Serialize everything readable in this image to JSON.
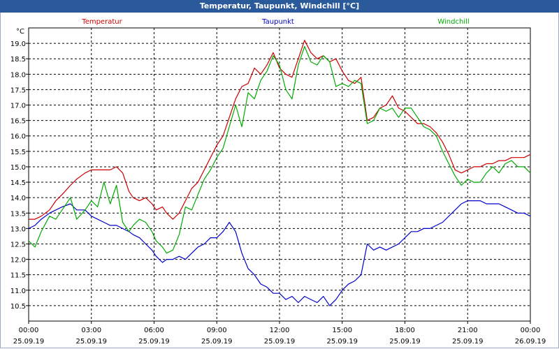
{
  "title": "Temperatur, Taupunkt, Windchill [°C]",
  "chart_data": {
    "type": "line",
    "title": "Temperatur, Taupunkt, Windchill [°C]",
    "ylabel": "°C",
    "ylim": [
      10.0,
      19.5
    ],
    "xlim": [
      0,
      24
    ],
    "grid": true,
    "y_ticks": [
      "19.0",
      "18.5",
      "18.0",
      "17.5",
      "17.0",
      "16.5",
      "16.0",
      "15.5",
      "15.0",
      "14.5",
      "14.0",
      "13.5",
      "13.0",
      "12.5",
      "12.0",
      "11.5",
      "11.0",
      "10.5"
    ],
    "x_ticks": [
      {
        "time": "00:00",
        "date": "25.09.19"
      },
      {
        "time": "03:00",
        "date": "25.09.19"
      },
      {
        "time": "06:00",
        "date": "25.09.19"
      },
      {
        "time": "09:00",
        "date": "25.09.19"
      },
      {
        "time": "12:00",
        "date": "25.09.19"
      },
      {
        "time": "15:00",
        "date": "25.09.19"
      },
      {
        "time": "18:00",
        "date": "25.09.19"
      },
      {
        "time": "21:00",
        "date": "25.09.19"
      },
      {
        "time": "00:00",
        "date": "26.09.19"
      }
    ],
    "series": [
      {
        "name": "Temperatur",
        "color": "#cc0000",
        "x": [
          0,
          0.3,
          0.6,
          1,
          1.3,
          1.6,
          2,
          2.3,
          2.7,
          3,
          3.3,
          3.6,
          3.9,
          4.2,
          4.5,
          4.8,
          5,
          5.3,
          5.6,
          5.9,
          6.1,
          6.4,
          6.6,
          6.9,
          7.2,
          7.5,
          7.8,
          8.1,
          8.4,
          8.7,
          9,
          9.3,
          9.6,
          9.9,
          10.2,
          10.5,
          10.8,
          11.1,
          11.4,
          11.7,
          12,
          12.3,
          12.6,
          12.9,
          13.2,
          13.5,
          13.8,
          14.1,
          14.4,
          14.7,
          15,
          15.3,
          15.6,
          15.9,
          16.2,
          16.5,
          16.8,
          17.1,
          17.4,
          17.7,
          18,
          18.3,
          18.6,
          18.9,
          19.2,
          19.5,
          19.8,
          20.1,
          20.4,
          20.7,
          21,
          21.3,
          21.6,
          21.9,
          22.2,
          22.5,
          22.8,
          23.1,
          23.4,
          23.7,
          24
        ],
        "values": [
          13.3,
          13.3,
          13.4,
          13.6,
          13.9,
          14.1,
          14.4,
          14.6,
          14.8,
          14.9,
          14.9,
          14.9,
          14.9,
          15.0,
          14.8,
          14.2,
          14.0,
          13.9,
          14.0,
          13.8,
          13.6,
          13.7,
          13.5,
          13.3,
          13.5,
          13.9,
          14.3,
          14.5,
          14.9,
          15.3,
          15.7,
          16.0,
          16.6,
          17.2,
          17.6,
          17.7,
          18.2,
          18.0,
          18.3,
          18.7,
          18.2,
          18.0,
          17.9,
          18.5,
          19.1,
          18.7,
          18.5,
          18.6,
          18.4,
          18.5,
          18.1,
          17.8,
          17.7,
          17.9,
          16.5,
          16.6,
          16.9,
          17.0,
          17.3,
          16.9,
          16.8,
          16.6,
          16.4,
          16.4,
          16.3,
          16.1,
          15.8,
          15.4,
          14.9,
          14.8,
          14.9,
          15.0,
          15.0,
          15.1,
          15.1,
          15.2,
          15.2,
          15.3,
          15.3,
          15.3,
          15.4
        ]
      },
      {
        "name": "Taupunkt",
        "color": "#0000cc",
        "x": [
          0,
          0.3,
          0.6,
          1,
          1.3,
          1.6,
          2,
          2.3,
          2.7,
          3,
          3.3,
          3.6,
          3.9,
          4.2,
          4.5,
          4.8,
          5,
          5.3,
          5.6,
          5.9,
          6.1,
          6.4,
          6.6,
          6.9,
          7.2,
          7.5,
          7.8,
          8.1,
          8.4,
          8.7,
          9,
          9.3,
          9.6,
          9.9,
          10.2,
          10.5,
          10.8,
          11.1,
          11.4,
          11.7,
          12,
          12.3,
          12.6,
          12.9,
          13.2,
          13.5,
          13.8,
          14.1,
          14.4,
          14.7,
          15,
          15.3,
          15.6,
          15.9,
          16.2,
          16.5,
          16.8,
          17.1,
          17.4,
          17.7,
          18,
          18.3,
          18.6,
          18.9,
          19.2,
          19.5,
          19.8,
          20.1,
          20.4,
          20.7,
          21,
          21.3,
          21.6,
          21.9,
          22.2,
          22.5,
          22.8,
          23.1,
          23.4,
          23.7,
          24
        ],
        "values": [
          13.0,
          13.1,
          13.3,
          13.5,
          13.6,
          13.7,
          13.8,
          13.6,
          13.6,
          13.4,
          13.3,
          13.2,
          13.1,
          13.1,
          13.0,
          12.9,
          12.8,
          12.7,
          12.5,
          12.3,
          12.1,
          11.9,
          12.0,
          12.0,
          12.1,
          12.0,
          12.2,
          12.4,
          12.5,
          12.7,
          12.7,
          12.9,
          13.2,
          12.9,
          12.2,
          11.7,
          11.5,
          11.2,
          11.1,
          10.9,
          10.9,
          10.7,
          10.8,
          10.6,
          10.8,
          10.7,
          10.6,
          10.8,
          10.5,
          10.7,
          11.0,
          11.2,
          11.3,
          11.5,
          12.5,
          12.3,
          12.4,
          12.3,
          12.4,
          12.5,
          12.7,
          12.9,
          12.9,
          13.0,
          13.0,
          13.1,
          13.2,
          13.4,
          13.6,
          13.8,
          13.9,
          13.9,
          13.9,
          13.8,
          13.8,
          13.8,
          13.7,
          13.6,
          13.5,
          13.5,
          13.4
        ]
      },
      {
        "name": "Windchill",
        "color": "#00aa00",
        "x": [
          0,
          0.3,
          0.6,
          1,
          1.3,
          1.6,
          2,
          2.3,
          2.7,
          3,
          3.3,
          3.6,
          3.9,
          4.2,
          4.5,
          4.8,
          5,
          5.3,
          5.6,
          5.9,
          6.1,
          6.4,
          6.6,
          6.9,
          7.2,
          7.5,
          7.8,
          8.1,
          8.4,
          8.7,
          9,
          9.3,
          9.6,
          9.9,
          10.2,
          10.5,
          10.8,
          11.1,
          11.4,
          11.7,
          12,
          12.3,
          12.6,
          12.9,
          13.2,
          13.5,
          13.8,
          14.1,
          14.4,
          14.7,
          15,
          15.3,
          15.6,
          15.9,
          16.2,
          16.5,
          16.8,
          17.1,
          17.4,
          17.7,
          18,
          18.3,
          18.6,
          18.9,
          19.2,
          19.5,
          19.8,
          20.1,
          20.4,
          20.7,
          21,
          21.3,
          21.6,
          21.9,
          22.2,
          22.5,
          22.8,
          23.1,
          23.4,
          23.7,
          24
        ],
        "values": [
          12.6,
          12.4,
          12.9,
          13.4,
          13.3,
          13.6,
          14.0,
          13.3,
          13.6,
          13.9,
          13.7,
          14.5,
          13.8,
          14.4,
          13.2,
          12.9,
          13.1,
          13.3,
          13.2,
          12.9,
          12.6,
          12.4,
          12.2,
          12.3,
          12.8,
          13.7,
          13.6,
          14.1,
          14.6,
          14.9,
          15.3,
          15.6,
          16.3,
          17.0,
          16.3,
          17.4,
          17.2,
          17.8,
          18.1,
          18.6,
          18.3,
          17.5,
          17.2,
          18.3,
          18.9,
          18.4,
          18.3,
          18.6,
          18.4,
          17.6,
          17.7,
          17.6,
          17.8,
          17.7,
          16.4,
          16.5,
          16.9,
          16.8,
          16.9,
          16.6,
          16.9,
          16.9,
          16.6,
          16.3,
          16.2,
          16.0,
          15.5,
          15.1,
          14.7,
          14.4,
          14.6,
          14.5,
          14.5,
          14.8,
          15.0,
          14.8,
          15.1,
          15.2,
          15.0,
          15.0,
          14.8
        ]
      }
    ]
  }
}
